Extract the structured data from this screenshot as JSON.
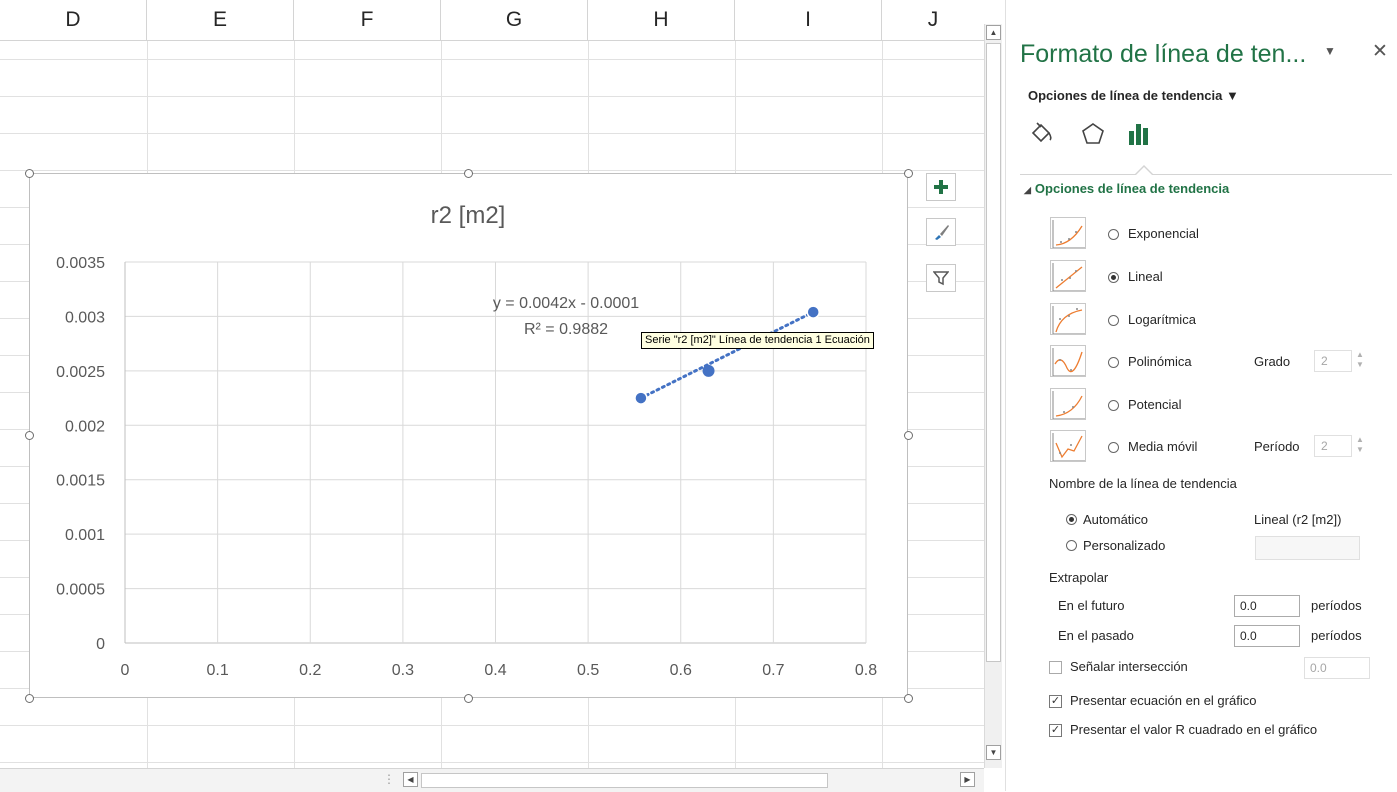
{
  "sheet": {
    "columns": [
      "D",
      "E",
      "F",
      "G",
      "H",
      "I",
      "J"
    ]
  },
  "chart_data": {
    "type": "scatter",
    "title": "r2 [m2]",
    "x_ticks": [
      "0",
      "0.1",
      "0.2",
      "0.3",
      "0.4",
      "0.5",
      "0.6",
      "0.7",
      "0.8"
    ],
    "y_ticks": [
      "0",
      "0.0005",
      "0.001",
      "0.0015",
      "0.002",
      "0.0025",
      "0.003",
      "0.0035"
    ],
    "xlim": [
      0,
      0.8
    ],
    "ylim": [
      0,
      0.0035
    ],
    "grid": true,
    "series": [
      {
        "points": [
          {
            "x": 0.557,
            "y": 0.00225
          },
          {
            "x": 0.63,
            "y": 0.0025
          },
          {
            "x": 0.743,
            "y": 0.00304
          }
        ],
        "color": "#4472c4"
      }
    ],
    "trendline": {
      "type": "linear",
      "x_from": 0.557,
      "x_to": 0.743,
      "color": "#4472c4",
      "equation": "y = 0.0042x - 0.0001",
      "r_squared": "R² = 0.9882"
    }
  },
  "tooltip": "Serie \"r2 [m2]\" Línea de tendencia 1 Ecuación",
  "pane": {
    "title": "Formato de línea de ten...",
    "subtitle": "Opciones de línea de tendencia ▼",
    "section": "Opciones de línea de tendencia",
    "trend_options": [
      {
        "label": "Exponencial",
        "selected": false
      },
      {
        "label": "Lineal",
        "selected": true
      },
      {
        "label": "Logarítmica",
        "selected": false
      },
      {
        "label": "Polinómica",
        "selected": false
      },
      {
        "label": "Potencial",
        "selected": false
      },
      {
        "label": "Media móvil",
        "selected": false
      }
    ],
    "grado_label": "Grado",
    "grado_value": "2",
    "periodo_label": "Período",
    "periodo_value": "2",
    "name_heading": "Nombre de la línea de tendencia",
    "automatico": "Automático",
    "automatico_value": "Lineal (r2 [m2])",
    "personalizado": "Personalizado",
    "extrapolar": "Extrapolar",
    "futuro": "En el futuro",
    "futuro_value": "0.0",
    "pasado": "En el pasado",
    "pasado_value": "0.0",
    "periodos": "períodos",
    "intersect": "Señalar intersección",
    "intersect_value": "0.0",
    "show_equation": "Presentar ecuación en el gráfico",
    "show_r2": "Presentar el valor R cuadrado en el gráfico"
  },
  "colors": {
    "accent": "#217346",
    "series": "#4472c4"
  }
}
